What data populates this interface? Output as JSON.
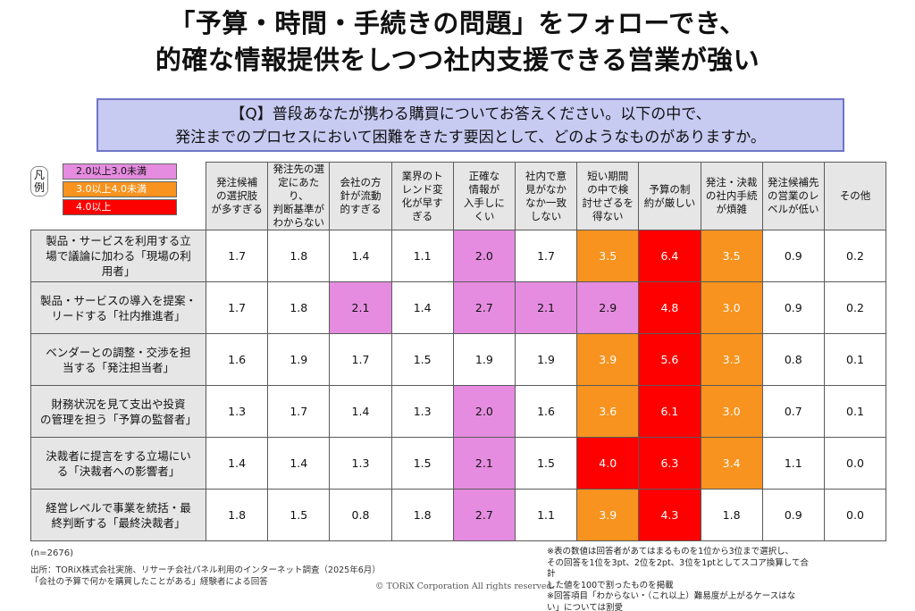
{
  "title": {
    "line1": "「予算・時間・手続きの問題」をフォローでき、",
    "line2": "的確な情報提供をしつつ社内支援できる営業が強い"
  },
  "question": {
    "line1": "【Q】普段あなたが携わる購買についてお答えください。以下の中で、",
    "line2": "発注までのプロセスにおいて困難をきたす要因として、どのようなものがありますか。"
  },
  "legend": {
    "label": "凡例",
    "items": [
      {
        "text": "2.0以上3.0未満",
        "color": "#e58ce0"
      },
      {
        "text": "3.0以上4.0未満",
        "color": "#f7931e"
      },
      {
        "text": "4.0以上",
        "color": "#ff0000"
      }
    ]
  },
  "table": {
    "columns": [
      [
        "発注候補",
        "の選択肢",
        "が多すぎる"
      ],
      [
        "発注先の選",
        "定にあたり、",
        "判断基準が",
        "わからない"
      ],
      [
        "会社の方",
        "針が流動",
        "的すぎる"
      ],
      [
        "業界のト",
        "レンド変",
        "化が早す",
        "ぎる"
      ],
      [
        "正確な",
        "情報が",
        "入手しに",
        "くい"
      ],
      [
        "社内で意",
        "見がなか",
        "なか一致",
        "しない"
      ],
      [
        "短い期間",
        "の中で検",
        "討せざるを",
        "得ない"
      ],
      [
        "予算の制",
        "約が厳しい"
      ],
      [
        "発注・決裁",
        "の社内手続",
        "が煩雑"
      ],
      [
        "発注候補先",
        "の営業のレ",
        "ベルが低い"
      ],
      [
        "その他"
      ]
    ],
    "rows": [
      {
        "label": [
          "製品・サービスを利用する立",
          "場で議論に加わる「現場の利",
          "用者」"
        ],
        "values": [
          "1.7",
          "1.8",
          "1.4",
          "1.1",
          "2.0",
          "1.7",
          "3.5",
          "6.4",
          "3.5",
          "0.9",
          "0.2"
        ],
        "levels": [
          0,
          0,
          0,
          0,
          2,
          0,
          3,
          4,
          3,
          0,
          0
        ]
      },
      {
        "label": [
          "製品・サービスの導入を提案・",
          "リードする「社内推進者」"
        ],
        "values": [
          "1.7",
          "1.8",
          "2.1",
          "1.4",
          "2.7",
          "2.1",
          "2.9",
          "4.8",
          "3.0",
          "0.9",
          "0.2"
        ],
        "levels": [
          0,
          0,
          2,
          0,
          2,
          2,
          2,
          4,
          3,
          0,
          0
        ]
      },
      {
        "label": [
          "ベンダーとの調整・交渉を担",
          "当する「発注担当者」"
        ],
        "values": [
          "1.6",
          "1.9",
          "1.7",
          "1.5",
          "1.9",
          "1.9",
          "3.9",
          "5.6",
          "3.3",
          "0.8",
          "0.1"
        ],
        "levels": [
          0,
          0,
          0,
          0,
          0,
          0,
          3,
          4,
          3,
          0,
          0
        ]
      },
      {
        "label": [
          "財務状況を見て支出や投資",
          "の管理を担う「予算の監督者」"
        ],
        "values": [
          "1.3",
          "1.7",
          "1.4",
          "1.3",
          "2.0",
          "1.6",
          "3.6",
          "6.1",
          "3.0",
          "0.7",
          "0.1"
        ],
        "levels": [
          0,
          0,
          0,
          0,
          2,
          0,
          3,
          4,
          3,
          0,
          0
        ]
      },
      {
        "label": [
          "決裁者に提言をする立場にい",
          "る「決裁者への影響者」"
        ],
        "values": [
          "1.4",
          "1.4",
          "1.3",
          "1.5",
          "2.1",
          "1.5",
          "4.0",
          "6.3",
          "3.4",
          "1.1",
          "0.0"
        ],
        "levels": [
          0,
          0,
          0,
          0,
          2,
          0,
          4,
          4,
          3,
          0,
          0
        ]
      },
      {
        "label": [
          "経営レベルで事業を統括・最",
          "終判断する「最終決裁者」"
        ],
        "values": [
          "1.8",
          "1.5",
          "0.8",
          "1.8",
          "2.7",
          "1.1",
          "3.9",
          "4.3",
          "1.8",
          "0.9",
          "0.0"
        ],
        "levels": [
          0,
          0,
          0,
          0,
          2,
          0,
          3,
          4,
          0,
          0,
          0
        ]
      }
    ]
  },
  "footer": {
    "n": "(n=2676)",
    "source_line1": "出所：TORiX株式会社実施、リサーチ会社パネル利用のインターネット調査（2025年6月）",
    "source_line2": "「会社の予算で何かを購買したことがある」経験者による回答",
    "copyright": "© TORiX Corporation All rights reserved.",
    "notes": [
      "※表の数値は回答者があてはまるものを1位から3位まで選択し、",
      "その回答を1位を3pt、2位を2pt、3位を1ptとしてスコア換算して合計",
      "した値を100で割ったものを掲載",
      "※回答項目「わからない・（これ以上）難易度が上がるケースはな",
      "い」については割愛"
    ]
  }
}
